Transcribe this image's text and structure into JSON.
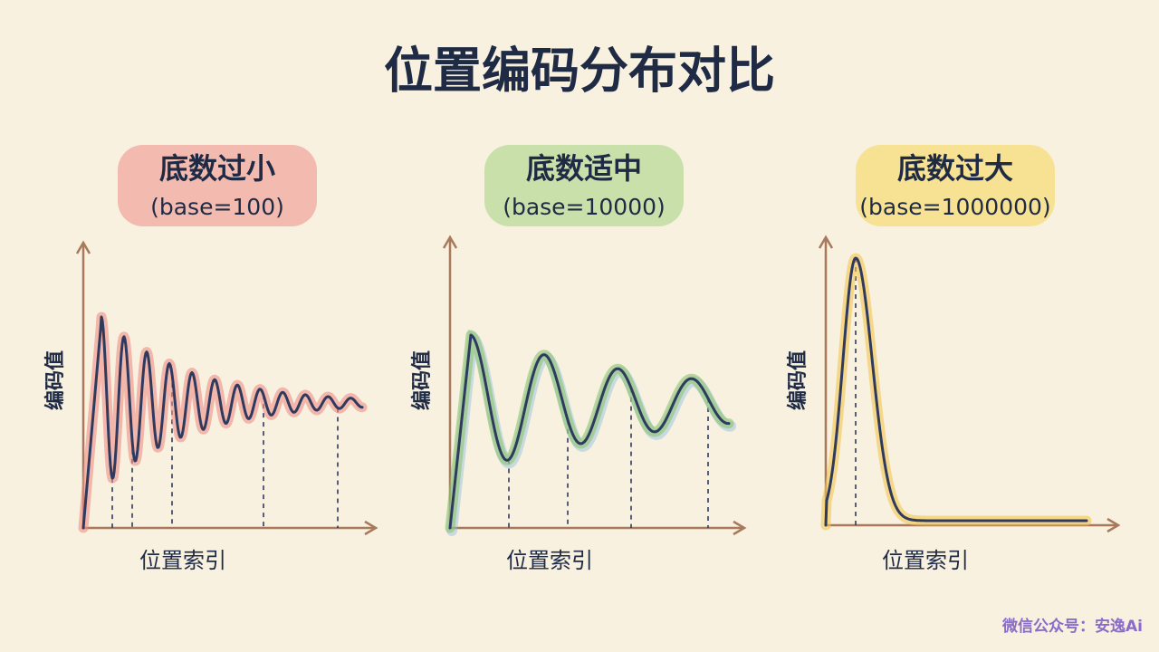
{
  "title": "位置编码分布对比",
  "panels": [
    {
      "title": "底数过小",
      "subtitle": "(base=100)",
      "y_label": "编码值",
      "x_label": "位置索引"
    },
    {
      "title": "底数适中",
      "subtitle": "(base=10000)",
      "y_label": "编码值",
      "x_label": "位置索引"
    },
    {
      "title": "底数过大",
      "subtitle": "(base=1000000)",
      "y_label": "编码值",
      "x_label": "位置索引"
    }
  ],
  "watermark": "微信公众号：安逸Ai"
}
